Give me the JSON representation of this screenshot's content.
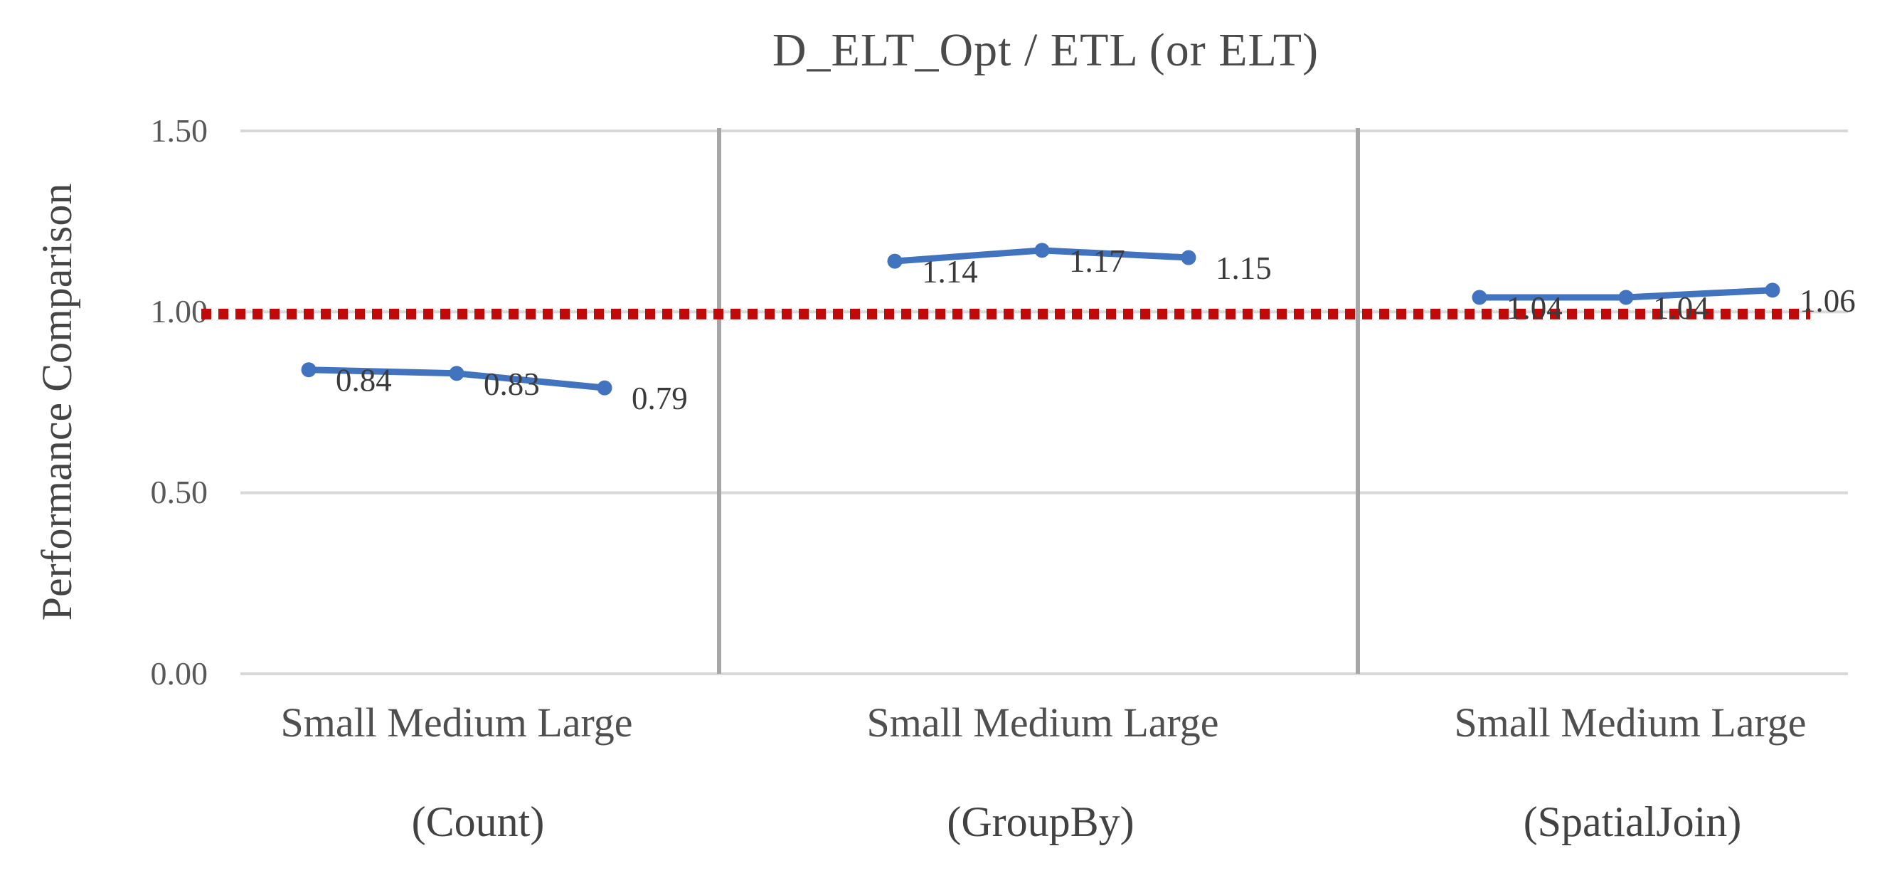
{
  "chart_data": {
    "type": "line",
    "title": "D_ELT_Opt / ETL (or ELT)",
    "ylabel": "Performance Comparison",
    "xlabel": "",
    "ylim": [
      0,
      1.5
    ],
    "grid": true,
    "legend": false,
    "yticks": [
      {
        "label": "1.50",
        "value": 1.5
      },
      {
        "label": "1.00",
        "value": 1.0
      },
      {
        "label": "0.50",
        "value": 0.5
      },
      {
        "label": "0.00",
        "value": 0.0
      }
    ],
    "reference_line": {
      "value": 1.0,
      "style": "dotted",
      "color": "#C00A0A"
    },
    "series_name": "D_ELT_Opt / ETL (or ELT)",
    "panels": [
      {
        "label": "(Count)",
        "categories": [
          "Small",
          "Medium",
          "Large"
        ],
        "categories_text": "Small Medium Large",
        "values": [
          0.84,
          0.83,
          0.79
        ],
        "data_labels": [
          "0.84",
          "0.83",
          "0.79"
        ]
      },
      {
        "label": "(GroupBy)",
        "categories": [
          "Small",
          "Medium",
          "Large"
        ],
        "categories_text": "Small Medium Large",
        "values": [
          1.14,
          1.17,
          1.15
        ],
        "data_labels": [
          "1.14",
          "1.17",
          "1.15"
        ]
      },
      {
        "label": "(SpatialJoin)",
        "categories": [
          "Small",
          "Medium",
          "Large"
        ],
        "categories_text": "Small Medium Large",
        "values": [
          1.04,
          1.04,
          1.06
        ],
        "data_labels": [
          "1.04",
          "1.04",
          "1.06"
        ]
      }
    ],
    "colors": {
      "series": "#4173BE",
      "reference": "#C00A0A",
      "gridline": "#D9D9D9",
      "panel_divider": "#A6A6A6",
      "data_label_text": "#3b3b3b"
    }
  }
}
